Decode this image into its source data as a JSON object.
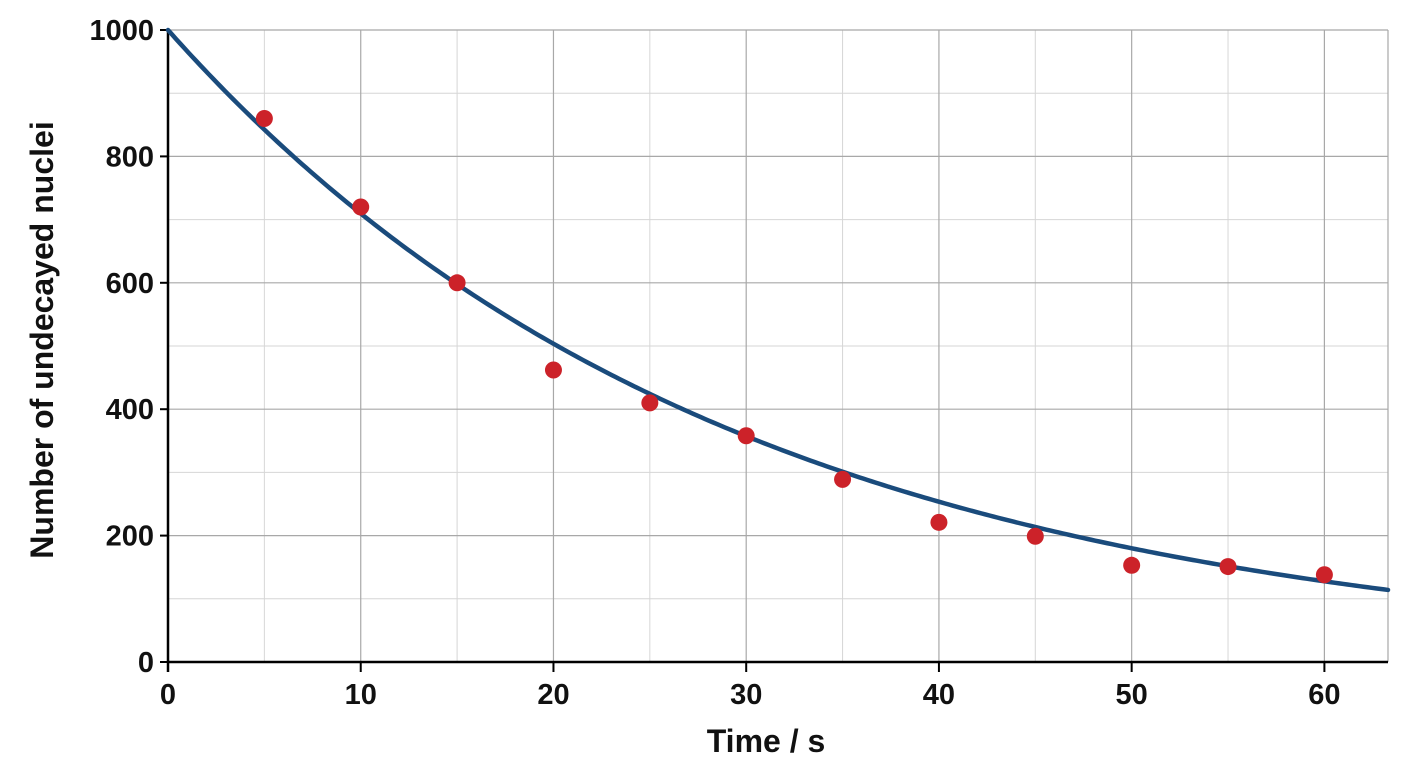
{
  "chart_data": {
    "type": "scatter",
    "title": "",
    "xlabel": "Time / s",
    "ylabel": "Number of undecayed nuclei",
    "xlim": [
      0,
      63.3
    ],
    "ylim": [
      0,
      1000
    ],
    "x_ticks": [
      0,
      10,
      20,
      30,
      40,
      50,
      60
    ],
    "y_ticks": [
      0,
      200,
      400,
      600,
      800,
      1000
    ],
    "x_minor_step": 5,
    "y_minor_step": 100,
    "grid": true,
    "legend": "none",
    "series": [
      {
        "kind": "points",
        "x": [
          5,
          10,
          15,
          20,
          25,
          30,
          35,
          40,
          45,
          50,
          55,
          60
        ],
        "y": [
          860,
          720,
          600,
          462,
          410,
          358,
          289,
          221,
          199,
          153,
          151,
          138
        ]
      },
      {
        "kind": "curve",
        "model": "N = N0 * exp(-lambda * t)",
        "N0": 1000,
        "lambda": 0.0343
      }
    ],
    "colors": {
      "points": "#cc2229",
      "curve": "#1a4b7c",
      "major_grid": "#a8a8a8",
      "minor_grid": "#d6d6d6",
      "axis": "#000000"
    }
  }
}
